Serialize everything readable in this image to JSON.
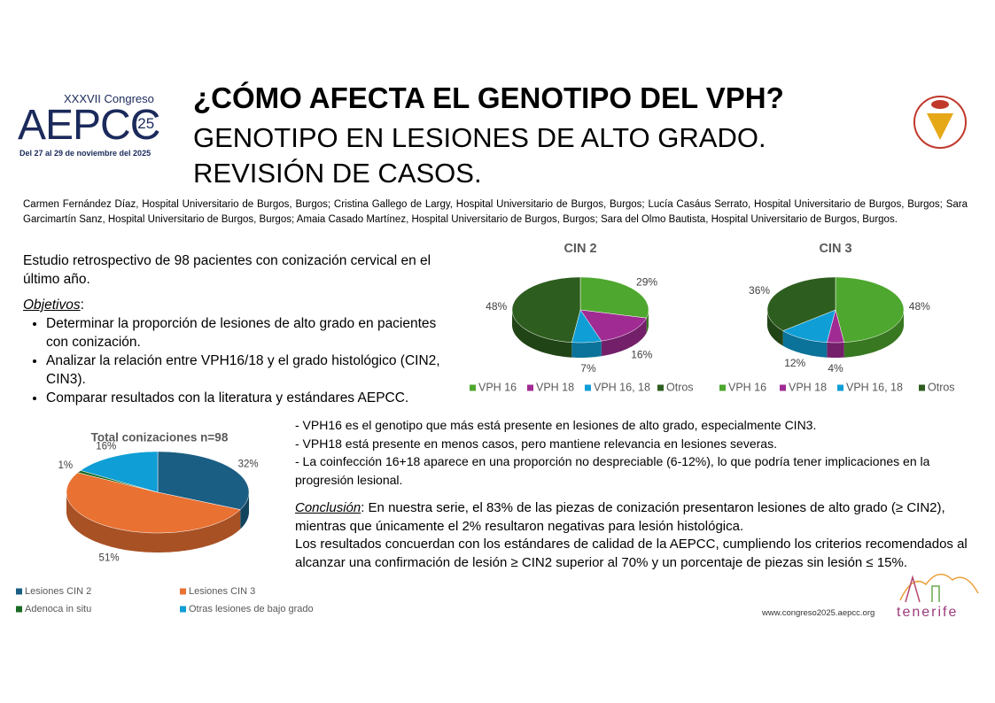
{
  "header": {
    "congress": "XXXVII Congreso",
    "brand": "AEPCC",
    "brand_year": "'25",
    "dates": "Del 27 al 29 de noviembre del 2025",
    "title": "¿CÓMO AFECTA EL GENOTIPO DEL VPH?",
    "subtitle_lines": [
      "GENOTIPO EN LESIONES DE ALTO GRADO.",
      "REVISIÓN DE CASOS."
    ]
  },
  "authors": "Carmen Fernández Díaz, Hospital Universitario de Burgos, Burgos; Cristina Gallego de Largy, Hospital Universitario de Burgos, Burgos; Lucía Casáus Serrato, Hospital Universitario de Burgos, Burgos; Sara Garcimartín Sanz, Hospital Universitario de Burgos, Burgos; Amaia Casado Martínez, Hospital Universitario de Burgos, Burgos; Sara del Olmo Bautista, Hospital Universitario de Burgos, Burgos.",
  "intro": "Estudio retrospectivo de 98 pacientes con conización cervical en el último año.",
  "objectives": {
    "title": "Objetivos",
    "title_suffix": ":",
    "items": [
      "Determinar la proporción de lesiones de alto grado en pacientes con conización.",
      "Analizar la relación entre VPH16/18 y el grado histológico (CIN2, CIN3).",
      "Comparar resultados con la literatura y estándares AEPCC."
    ]
  },
  "findings": [
    "- VPH16 es el genotipo que más está presente en lesiones de alto grado, especialmente CIN3.",
    "- VPH18 está presente en menos casos, pero mantiene relevancia en lesiones severas.",
    "- La coinfección 16+18 aparece en una proporción no despreciable (6-12%), lo que podría tener implicaciones en la progresión lesional."
  ],
  "conclusion": {
    "label": "Conclusión",
    "text": ": En nuestra serie, el 83% de las piezas de conización presentaron lesiones de alto grado (≥ CIN2), mientras que únicamente el 2% resultaron negativas para lesión histológica.",
    "text2": "Los resultados concuerdan con los estándares de calidad de la AEPCC, cumpliendo los criterios recomendados al alcanzar una confirmación de lesión ≥ CIN2 superior al 70% y un porcentaje de piezas sin lesión ≤ 15%."
  },
  "footer": {
    "url": "www.congreso2025.aepcc.org",
    "place": "tenerife"
  },
  "chart_data": [
    {
      "type": "pie",
      "title": "CIN 2",
      "categories": [
        "VPH 16",
        "VPH 18",
        "VPH 16, 18",
        "Otros"
      ],
      "values": [
        29,
        16,
        7,
        48
      ],
      "value_labels": [
        "29%",
        "16%",
        "7%",
        "48%"
      ],
      "colors": [
        "#4ea72e",
        "#a02b93",
        "#0f9ed5",
        "#2e5e1f"
      ],
      "legend": "bottom"
    },
    {
      "type": "pie",
      "title": "CIN 3",
      "categories": [
        "VPH 16",
        "VPH 18",
        "VPH 16, 18",
        "Otros"
      ],
      "values": [
        48,
        4,
        12,
        36
      ],
      "value_labels": [
        "48%",
        "4%",
        "12%",
        "36%"
      ],
      "colors": [
        "#4ea72e",
        "#a02b93",
        "#0f9ed5",
        "#2e5e1f"
      ],
      "legend": "bottom"
    },
    {
      "type": "pie",
      "title": "Total conizaciones n=98",
      "categories": [
        "Lesiones CIN 2",
        "Lesiones CIN 3",
        "Adenoca in situ",
        "Otras lesiones de bajo grado"
      ],
      "values": [
        32,
        51,
        1,
        16
      ],
      "value_labels": [
        "32%",
        "51%",
        "1%",
        "16%"
      ],
      "colors": [
        "#1b5e83",
        "#e97132",
        "#196b24",
        "#0f9ed5"
      ],
      "legend": "bottom"
    }
  ]
}
